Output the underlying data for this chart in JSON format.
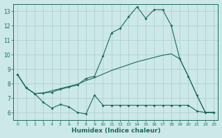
{
  "xlabel": "Humidex (Indice chaleur)",
  "bg_color": "#cce8e8",
  "grid_color": "#aacccc",
  "line_color": "#1a6b5a",
  "xlim": [
    -0.5,
    23.5
  ],
  "ylim": [
    5.5,
    13.5
  ],
  "yticks": [
    6,
    7,
    8,
    9,
    10,
    11,
    12,
    13
  ],
  "xticks": [
    0,
    1,
    2,
    3,
    4,
    5,
    6,
    7,
    8,
    9,
    10,
    11,
    12,
    13,
    14,
    15,
    16,
    17,
    18,
    19,
    20,
    21,
    22,
    23
  ],
  "line1_x": [
    0,
    1,
    2,
    3,
    4,
    5,
    6,
    7,
    8,
    9,
    10,
    11,
    12,
    13,
    14,
    15,
    16,
    17,
    18,
    19,
    20,
    21,
    22,
    23
  ],
  "line1_y": [
    8.6,
    7.7,
    7.3,
    6.7,
    6.3,
    6.55,
    6.4,
    6.0,
    5.9,
    7.2,
    6.5,
    6.5,
    6.5,
    6.5,
    6.5,
    6.5,
    6.5,
    6.5,
    6.5,
    6.5,
    6.5,
    6.1,
    6.0,
    6.0
  ],
  "line2_x": [
    0,
    1,
    2,
    3,
    4,
    5,
    6,
    7,
    8,
    9,
    10,
    11,
    12,
    13,
    14,
    15,
    16,
    17,
    18,
    19,
    20,
    21,
    22,
    23
  ],
  "line2_y": [
    8.6,
    7.7,
    7.3,
    7.35,
    7.4,
    7.6,
    7.75,
    7.9,
    8.35,
    8.5,
    9.9,
    11.5,
    11.8,
    12.6,
    13.3,
    12.5,
    13.1,
    13.1,
    12.0,
    9.7,
    8.5,
    7.2,
    6.0,
    6.0
  ],
  "line3_x": [
    0,
    1,
    2,
    3,
    4,
    5,
    6,
    7,
    8,
    9,
    10,
    11,
    12,
    13,
    14,
    15,
    16,
    17,
    18,
    19,
    20,
    21,
    22,
    23
  ],
  "line3_y": [
    8.6,
    7.7,
    7.3,
    7.35,
    7.5,
    7.65,
    7.8,
    7.95,
    8.2,
    8.4,
    8.65,
    8.9,
    9.1,
    9.3,
    9.5,
    9.65,
    9.8,
    9.95,
    10.05,
    9.7,
    8.5,
    7.2,
    6.0,
    6.0
  ]
}
